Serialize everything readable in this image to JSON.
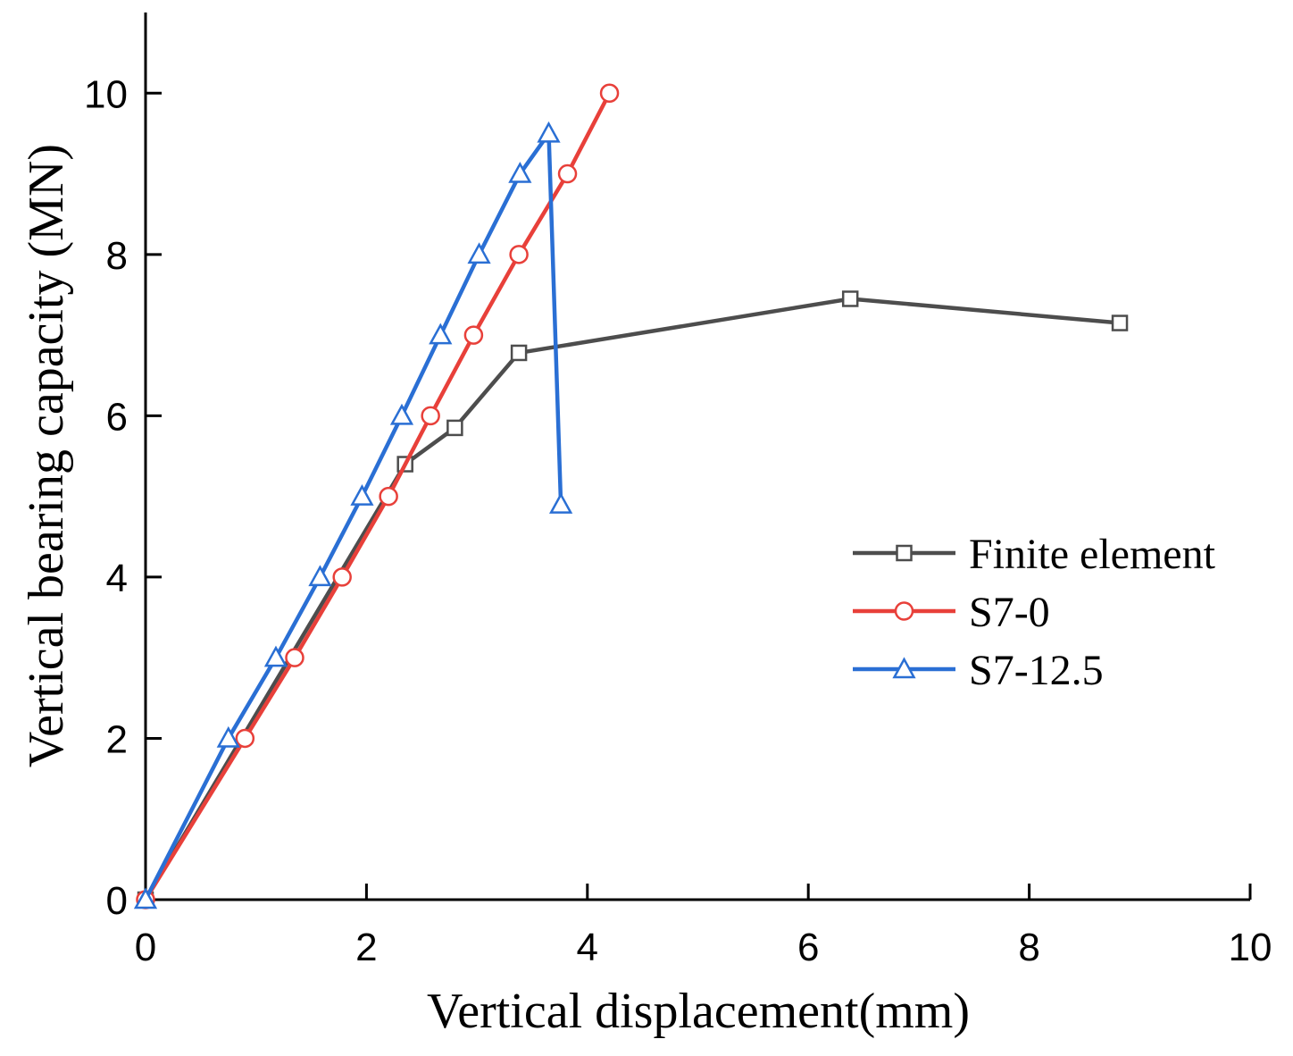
{
  "chart_data": {
    "type": "line",
    "title": "",
    "xlabel": "Vertical displacement(mm)",
    "ylabel": "Vertical bearing capacity (MN)",
    "xlim": [
      0,
      10
    ],
    "ylim": [
      0,
      11
    ],
    "x_ticks": [
      0,
      2,
      4,
      6,
      8,
      10
    ],
    "y_ticks": [
      0,
      2,
      4,
      6,
      8,
      10
    ],
    "x_tick_labels": [
      "0",
      "2",
      "4",
      "6",
      "8",
      "10"
    ],
    "y_tick_labels": [
      "0",
      "2",
      "4",
      "6",
      "8",
      "10"
    ],
    "grid": false,
    "legend_position": "right",
    "series": [
      {
        "name": "Finite element",
        "color": "#4d4d4d",
        "marker": "square",
        "x": [
          0,
          2.35,
          2.8,
          3.38,
          6.38,
          8.82
        ],
        "y": [
          0,
          5.4,
          5.85,
          6.78,
          7.45,
          7.15
        ]
      },
      {
        "name": "S7-0",
        "color": "#e8403a",
        "marker": "circle",
        "x": [
          0,
          0.9,
          1.35,
          1.78,
          2.2,
          2.58,
          2.97,
          3.38,
          3.82,
          4.2
        ],
        "y": [
          0,
          2,
          3,
          4,
          5,
          6,
          7,
          8,
          9,
          10
        ]
      },
      {
        "name": "S7-12.5",
        "color": "#2a6fd4",
        "marker": "triangle",
        "x": [
          0,
          0.75,
          1.18,
          1.58,
          1.96,
          2.32,
          2.67,
          3.02,
          3.39,
          3.65,
          3.76
        ],
        "y": [
          0,
          2,
          3,
          4,
          5,
          6,
          7,
          8,
          9,
          9.5,
          4.9
        ]
      }
    ]
  }
}
